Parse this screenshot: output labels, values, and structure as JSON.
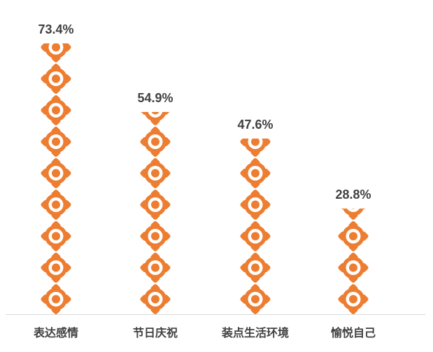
{
  "chart_data": {
    "type": "bar",
    "variant": "pictograph",
    "title": "",
    "categories": [
      "表达感情",
      "节日庆祝",
      "装点生活环境",
      "愉悦自己"
    ],
    "values": [
      73.4,
      54.9,
      47.6,
      28.8
    ],
    "value_labels": [
      "73.4%",
      "54.9%",
      "47.6%",
      "28.8%"
    ],
    "unit": "%",
    "xlabel": "",
    "ylabel": "",
    "ylim": [
      0,
      85
    ],
    "grid": false,
    "legend": false,
    "icon": "target-badge-icon",
    "colors": {
      "icon": "#ED7D31",
      "icon_inner": "#FFFFFF",
      "value_text": "#404040",
      "category_text": "#404040",
      "baseline": "#D9D9D9",
      "background": "#FFFFFF"
    }
  }
}
